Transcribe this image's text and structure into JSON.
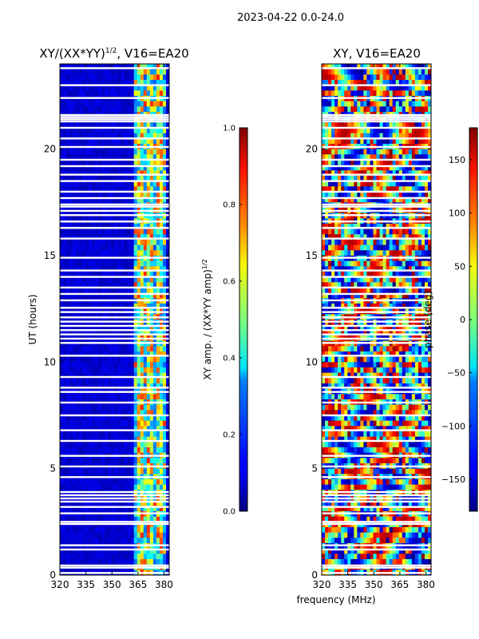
{
  "figure": {
    "suptitle": "2023-04-22 0.0-24.0",
    "shared_xlabel": "frequency (MHz)"
  },
  "chart_data": [
    {
      "type": "heatmap",
      "title": "XY/(XX*YY)",
      "title_superscript": "1/2",
      "title_suffix": ", V16=EA20",
      "xlabel": "",
      "ylabel": "UT (hours)",
      "xlim": [
        320,
        383
      ],
      "ylim": [
        0,
        24
      ],
      "xticks": [
        320,
        335,
        350,
        365,
        380
      ],
      "yticks": [
        0,
        5,
        10,
        15,
        20
      ],
      "colorbar": {
        "label": "XY amp. / (XX*YY amp)",
        "label_superscript": "1/2",
        "range": [
          0.0,
          1.0
        ],
        "ticks": [
          "0.0",
          "0.2",
          "0.4",
          "0.6",
          "0.8",
          "1.0"
        ],
        "colormap": "jet"
      },
      "description_values": {
        "background_level": 0.05,
        "active_band_mhz": [
          363,
          381
        ],
        "active_band_level_range": [
          0.25,
          0.85
        ]
      },
      "flagged_ut_hours": [
        0.1,
        0.35,
        0.45,
        1.2,
        1.4,
        2.4,
        2.5,
        2.9,
        3.2,
        3.45,
        3.6,
        3.75,
        3.9,
        4.6,
        5.1,
        5.6,
        6.3,
        6.8,
        7.5,
        8.1,
        8.6,
        8.8,
        9.3,
        10.3,
        10.9,
        11.1,
        11.3,
        11.5,
        11.7,
        11.9,
        12.1,
        12.35,
        12.55,
        12.9,
        13.2,
        13.5,
        14.0,
        14.3,
        14.9,
        15.8,
        16.3,
        16.6,
        16.9,
        17.1,
        17.3,
        17.4,
        17.7,
        18.0,
        18.5,
        18.8,
        19.2,
        19.5,
        20.1,
        20.5,
        21.0,
        21.3,
        21.4,
        21.5,
        21.6,
        22.4,
        23.0,
        23.8
      ]
    },
    {
      "type": "heatmap",
      "title": "XY, V16=EA20",
      "xlabel": "frequency (MHz)",
      "ylabel": "",
      "xlim": [
        320,
        383
      ],
      "ylim": [
        0,
        24
      ],
      "xticks": [
        320,
        335,
        350,
        365,
        380
      ],
      "yticks": [
        0,
        5,
        10,
        15,
        20
      ],
      "colorbar": {
        "label": "phase (deg)",
        "range": [
          -180,
          180
        ],
        "ticks": [
          "150",
          "100",
          "50",
          "0",
          "−50",
          "−100",
          "−150"
        ],
        "tick_values": [
          150,
          100,
          50,
          0,
          -50,
          -100,
          -150
        ],
        "colormap": "jet"
      },
      "flagged_ut_hours": [
        0.1,
        0.35,
        0.45,
        1.2,
        1.4,
        2.4,
        2.5,
        2.9,
        3.2,
        3.45,
        3.6,
        3.75,
        3.9,
        4.6,
        5.1,
        5.6,
        6.3,
        6.8,
        7.5,
        8.1,
        8.6,
        8.8,
        9.3,
        10.3,
        10.9,
        11.1,
        11.3,
        11.5,
        11.7,
        11.9,
        12.1,
        12.35,
        12.55,
        12.9,
        13.2,
        13.5,
        14.0,
        14.3,
        14.9,
        15.8,
        16.3,
        16.6,
        16.9,
        17.1,
        17.3,
        17.4,
        17.7,
        18.0,
        18.5,
        18.8,
        19.2,
        19.5,
        20.1,
        20.5,
        21.0,
        21.3,
        21.4,
        21.5,
        21.6,
        22.4,
        23.0,
        23.8
      ]
    }
  ]
}
